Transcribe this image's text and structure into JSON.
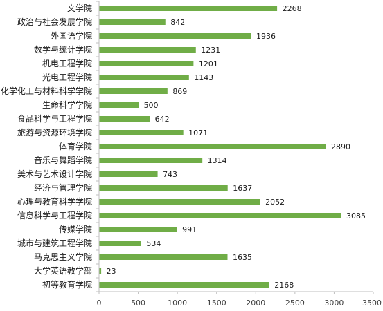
{
  "chart_data": {
    "type": "bar",
    "orientation": "horizontal",
    "categories": [
      "文学院",
      "政治与社会发展学院",
      "外国语学院",
      "数学与统计学院",
      "机电工程学院",
      "光电工程学院",
      "化学化工与材料科学学院",
      "生命科学学院",
      "食品科学与工程学院",
      "旅游与资源环境学院",
      "体育学院",
      "音乐与舞蹈学院",
      "美术与艺术设计学院",
      "经济与管理学院",
      "心理与教育科学学院",
      "信息科学与工程学院",
      "传媒学院",
      "城市与建筑工程学院",
      "马克思主义学院",
      "大学英语教学部",
      "初等教育学院"
    ],
    "values": [
      2268,
      842,
      1936,
      1231,
      1201,
      1143,
      869,
      500,
      642,
      1071,
      2890,
      1314,
      743,
      1637,
      2052,
      3085,
      991,
      534,
      1635,
      23,
      2168
    ],
    "xlim": [
      0,
      3500
    ],
    "xticks": [
      0,
      500,
      1000,
      1500,
      2000,
      2500,
      3000,
      3500
    ],
    "grid": false,
    "legend": "none",
    "data_labels": true,
    "bar_color": "#70ad47",
    "axis_color": "#bfbfbf"
  }
}
